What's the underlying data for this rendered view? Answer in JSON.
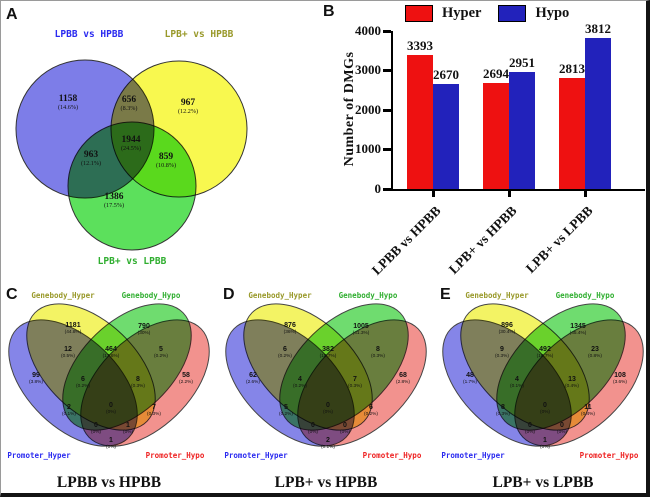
{
  "panel_letters": [
    "A",
    "B",
    "C",
    "D",
    "E"
  ],
  "chart_data": [
    {
      "id": "A",
      "type": "venn",
      "subtype": "venn3",
      "sets": [
        {
          "label": "LPBB vs HPBB",
          "label_color": "#2a2af0",
          "fill": "#7d7de8"
        },
        {
          "label": "LPB+ vs HPBB",
          "label_color": "#99992a",
          "fill": "#f8f84f"
        },
        {
          "label": "LPB+ vs LPBB",
          "label_color": "#2fae2f",
          "fill": "#5ce05c"
        }
      ],
      "regions": [
        {
          "name": "LPBB vs HPBB only",
          "value": "1158",
          "pct": "(14.6%)"
        },
        {
          "name": "LPB+ vs HPBB only",
          "value": "967",
          "pct": "(12.2%)"
        },
        {
          "name": "LPB+ vs LPBB only",
          "value": "1386",
          "pct": "(17.5%)"
        },
        {
          "name": "LPBB vs HPBB & LPB+ vs HPBB",
          "value": "656",
          "pct": "(8.3%)"
        },
        {
          "name": "LPBB vs HPBB & LPB+ vs LPBB",
          "value": "963",
          "pct": "(12.1%)"
        },
        {
          "name": "LPB+ vs HPBB & LPB+ vs LPBB",
          "value": "859",
          "pct": "(10.8%)"
        },
        {
          "name": "all three",
          "value": "1944",
          "pct": "(24.5%)"
        }
      ]
    },
    {
      "id": "B",
      "type": "bar",
      "ylabel": "Number of DMGs",
      "ylim": [
        0,
        4000
      ],
      "yticks": [
        0,
        1000,
        2000,
        3000,
        4000
      ],
      "grid": false,
      "legend_position": "top",
      "categories": [
        "LPBB vs HPBB",
        "LPB+ vs HPBB",
        "LPB+ vs LPBB"
      ],
      "series": [
        {
          "name": "Hyper",
          "color": "#ee1111",
          "values": [
            3393,
            2694,
            2813
          ]
        },
        {
          "name": "Hypo",
          "color": "#2222bb",
          "values": [
            2670,
            2951,
            3812
          ]
        }
      ]
    },
    {
      "id": "C",
      "type": "venn",
      "subtype": "venn4",
      "caption": "LPBB vs HPBB",
      "sets": [
        {
          "label": "Promoter_Hyper",
          "label_color": "#2a2af0",
          "fill": "#8585e8"
        },
        {
          "label": "Genebody_Hyper",
          "label_color": "#99992a",
          "fill": "#f3f364"
        },
        {
          "label": "Genebody_Hypo",
          "label_color": "#2fae2f",
          "fill": "#6fdc6f"
        },
        {
          "label": "Promoter_Hypo",
          "label_color": "#ee2222",
          "fill": "#f2928e"
        }
      ],
      "regions": [
        {
          "name": "Promoter_Hyper only",
          "value": "99",
          "pct": "(3.8%)"
        },
        {
          "name": "Genebody_Hyper only",
          "value": "1181",
          "pct": "(44.8%)"
        },
        {
          "name": "Genebody_Hypo only",
          "value": "790",
          "pct": "(30%)"
        },
        {
          "name": "Promoter_Hypo only",
          "value": "58",
          "pct": "(2.2%)"
        },
        {
          "name": "Promoter_Hyper & Genebody_Hyper",
          "value": "12",
          "pct": "(0.5%)"
        },
        {
          "name": "Genebody_Hyper & Genebody_Hypo",
          "value": "464",
          "pct": "(17.6%)"
        },
        {
          "name": "Genebody_Hypo & Promoter_Hypo",
          "value": "5",
          "pct": "(0.2%)"
        },
        {
          "name": "Promoter_Hyper & Genebody_Hyper & Genebody_Hypo",
          "value": "6",
          "pct": "(0.2%)"
        },
        {
          "name": "Genebody_Hyper & Genebody_Hypo & Promoter_Hypo",
          "value": "8",
          "pct": "(0.3%)"
        },
        {
          "name": "Promoter_Hyper & Genebody_Hypo",
          "value": "2",
          "pct": "(0.1%)"
        },
        {
          "name": "Genebody_Hyper & Promoter_Hypo",
          "value": "7",
          "pct": "(0.3%)"
        },
        {
          "name": "all four",
          "value": "0",
          "pct": "(0%)"
        },
        {
          "name": "Promoter_Hyper & Genebody_Hypo & Promoter_Hypo",
          "value": "0",
          "pct": "(0%)"
        },
        {
          "name": "Promoter_Hyper & Genebody_Hyper & Promoter_Hypo",
          "value": "1",
          "pct": "(0%)"
        },
        {
          "name": "Promoter_Hyper & Promoter_Hypo",
          "value": "1",
          "pct": "(0%)"
        }
      ]
    },
    {
      "id": "D",
      "type": "venn",
      "subtype": "venn4",
      "caption": "LPB+ vs HPBB",
      "sets": [
        {
          "label": "Promoter_Hyper",
          "label_color": "#2a2af0",
          "fill": "#8585e8"
        },
        {
          "label": "Genebody_Hyper",
          "label_color": "#99992a",
          "fill": "#f3f364"
        },
        {
          "label": "Genebody_Hypo",
          "label_color": "#2fae2f",
          "fill": "#6fdc6f"
        },
        {
          "label": "Promoter_Hypo",
          "label_color": "#ee2222",
          "fill": "#f2928e"
        }
      ],
      "regions": [
        {
          "name": "Promoter_Hyper only",
          "value": "62",
          "pct": "(2.6%)"
        },
        {
          "name": "Genebody_Hyper only",
          "value": "876",
          "pct": "(36%)"
        },
        {
          "name": "Genebody_Hypo only",
          "value": "1005",
          "pct": "(41.3%)"
        },
        {
          "name": "Promoter_Hypo only",
          "value": "68",
          "pct": "(2.8%)"
        },
        {
          "name": "Promoter_Hyper & Genebody_Hyper",
          "value": "6",
          "pct": "(0.2%)"
        },
        {
          "name": "Genebody_Hyper & Genebody_Hypo",
          "value": "382",
          "pct": "(15.7%)"
        },
        {
          "name": "Genebody_Hypo & Promoter_Hypo",
          "value": "8",
          "pct": "(0.3%)"
        },
        {
          "name": "Promoter_Hyper & Genebody_Hyper & Genebody_Hypo",
          "value": "4",
          "pct": "(0.2%)"
        },
        {
          "name": "Genebody_Hyper & Genebody_Hypo & Promoter_Hypo",
          "value": "7",
          "pct": "(0.3%)"
        },
        {
          "name": "Promoter_Hyper & Genebody_Hypo",
          "value": "5",
          "pct": "(0.2%)"
        },
        {
          "name": "Genebody_Hyper & Promoter_Hypo",
          "value": "6",
          "pct": "(0.2%)"
        },
        {
          "name": "all four",
          "value": "0",
          "pct": "(0%)"
        },
        {
          "name": "Promoter_Hyper & Genebody_Hypo & Promoter_Hypo",
          "value": "0",
          "pct": "(0%)"
        },
        {
          "name": "Promoter_Hyper & Genebody_Hyper & Promoter_Hypo",
          "value": "0",
          "pct": "(0%)"
        },
        {
          "name": "Promoter_Hyper & Promoter_Hypo",
          "value": "2",
          "pct": "(0.1%)"
        }
      ]
    },
    {
      "id": "E",
      "type": "venn",
      "subtype": "venn4",
      "caption": "LPB+ vs LPBB",
      "sets": [
        {
          "label": "Promoter_Hyper",
          "label_color": "#2a2af0",
          "fill": "#8585e8"
        },
        {
          "label": "Genebody_Hyper",
          "label_color": "#99992a",
          "fill": "#f3f364"
        },
        {
          "label": "Genebody_Hypo",
          "label_color": "#2fae2f",
          "fill": "#6fdc6f"
        },
        {
          "label": "Promoter_Hypo",
          "label_color": "#ee2222",
          "fill": "#f2928e"
        }
      ],
      "regions": [
        {
          "name": "Promoter_Hyper only",
          "value": "48",
          "pct": "(1.7%)"
        },
        {
          "name": "Genebody_Hyper only",
          "value": "896",
          "pct": "(30.4%)"
        },
        {
          "name": "Genebody_Hypo only",
          "value": "1345",
          "pct": "(45.4%)"
        },
        {
          "name": "Promoter_Hypo only",
          "value": "108",
          "pct": "(3.6%)"
        },
        {
          "name": "Promoter_Hyper & Genebody_Hyper",
          "value": "9",
          "pct": "(0.3%)"
        },
        {
          "name": "Genebody_Hyper & Genebody_Hypo",
          "value": "492",
          "pct": "(16.7%)"
        },
        {
          "name": "Genebody_Hypo & Promoter_Hypo",
          "value": "23",
          "pct": "(0.8%)"
        },
        {
          "name": "Promoter_Hyper & Genebody_Hyper & Genebody_Hypo",
          "value": "4",
          "pct": "(0.1%)"
        },
        {
          "name": "Genebody_Hyper & Genebody_Hypo & Promoter_Hypo",
          "value": "13",
          "pct": "(0.4%)"
        },
        {
          "name": "Promoter_Hyper & Genebody_Hypo",
          "value": "8",
          "pct": "(0.3%)"
        },
        {
          "name": "Genebody_Hyper & Promoter_Hypo",
          "value": "11",
          "pct": "(0.4%)"
        },
        {
          "name": "all four",
          "value": "0",
          "pct": "(0%)"
        },
        {
          "name": "Promoter_Hyper & Genebody_Hypo & Promoter_Hypo",
          "value": "0",
          "pct": "(0%)"
        },
        {
          "name": "Promoter_Hyper & Genebody_Hyper & Promoter_Hypo",
          "value": "0",
          "pct": "(0%)"
        },
        {
          "name": "Promoter_Hyper & Promoter_Hypo",
          "value": "1",
          "pct": "(0%)"
        }
      ]
    }
  ]
}
